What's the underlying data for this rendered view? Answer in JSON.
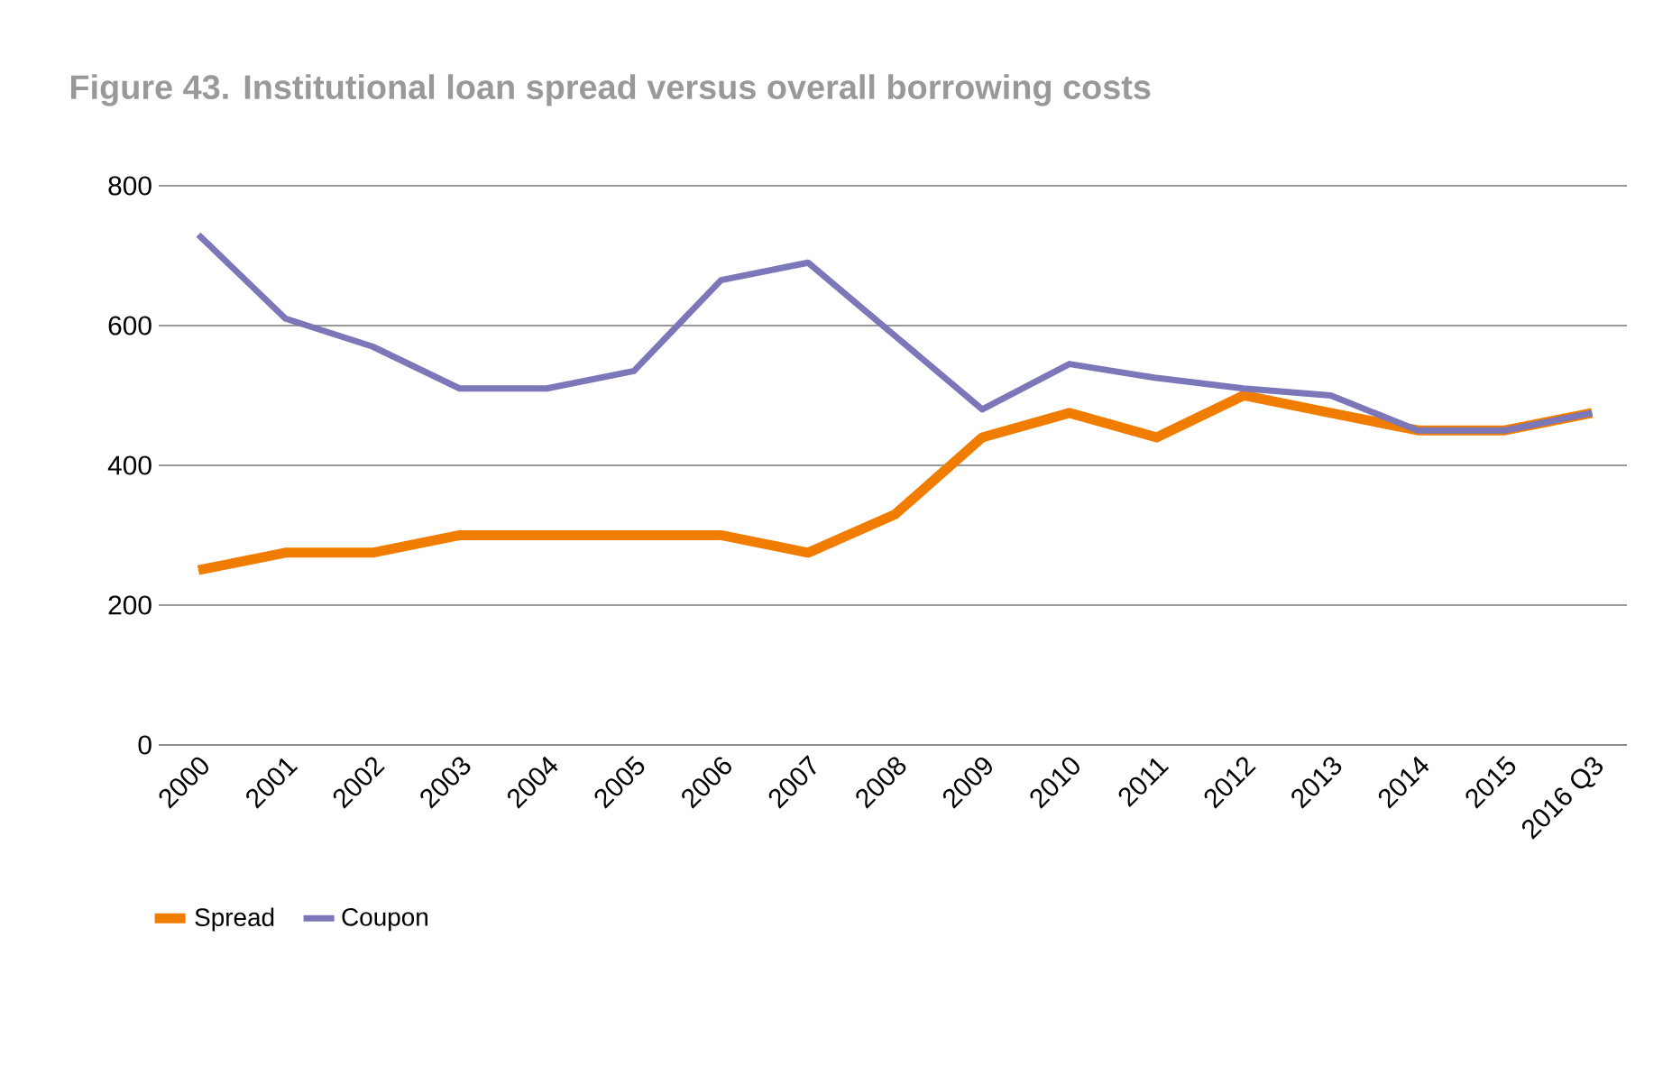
{
  "chart_data": {
    "type": "line",
    "title": "Figure 43. Institutional loan spread versus overall borrowing costs",
    "categories": [
      "2000",
      "2001",
      "2002",
      "2003",
      "2004",
      "2005",
      "2006",
      "2007",
      "2008",
      "2009",
      "2010",
      "2011",
      "2012",
      "2013",
      "2014",
      "2015",
      "2016 Q3"
    ],
    "series": [
      {
        "name": "Spread",
        "color": "#f07d00",
        "values": [
          250,
          275,
          275,
          300,
          300,
          300,
          300,
          275,
          330,
          440,
          475,
          440,
          500,
          475,
          450,
          450,
          475
        ]
      },
      {
        "name": "Coupon",
        "color": "#7b77b8",
        "values": [
          730,
          610,
          570,
          510,
          510,
          535,
          665,
          690,
          585,
          480,
          545,
          525,
          510,
          500,
          450,
          450,
          475
        ]
      }
    ],
    "ylim": [
      0,
      800
    ],
    "yticks": [
      0,
      200,
      400,
      600,
      800
    ],
    "grid": "y",
    "legend": "bottom"
  }
}
